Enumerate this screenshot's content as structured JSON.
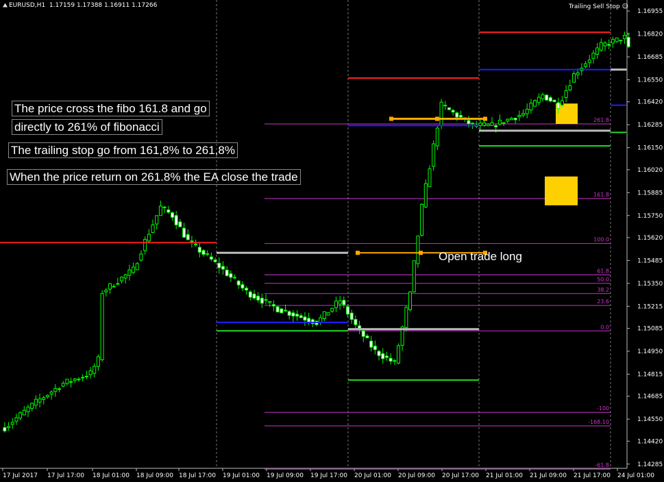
{
  "header": {
    "symbol": "EURUSD,H1",
    "ohlc": "1.17159 1.17388 1.16911 1.17266",
    "expert_name": "Trailing Sell Stop",
    "expert_icon": "smiley-icon"
  },
  "annotations": {
    "line1": "The price cross the fibo 161.8 and go",
    "line2": "directly to 261% of fibonacci",
    "line3": "The trailing stop go from 161,8% to 261,8%",
    "line4": "When the price return on 261.8% the EA close the trade",
    "open_trade": "Open trade long"
  },
  "colors": {
    "background": "#000000",
    "bull": "#00ff00",
    "bear": "#ffffff",
    "fib": "#cc33cc",
    "red": "#ff2020",
    "blue": "#2020ff",
    "green": "#20dd20",
    "gray": "#bdbdbd",
    "orange": "#ffaa00",
    "highlight": "#ffd000"
  },
  "chart_data": {
    "type": "candlestick",
    "symbol": "EURUSD",
    "timeframe": "H1",
    "y_range": [
      1.1426,
      1.17
    ],
    "y_ticks": [
      "1.16955",
      "1.16820",
      "1.16685",
      "1.16550",
      "1.16420",
      "1.16285",
      "1.16150",
      "1.16020",
      "1.15885",
      "1.15750",
      "1.15620",
      "1.15485",
      "1.15350",
      "1.15215",
      "1.15085",
      "1.14950",
      "1.14815",
      "1.14685",
      "1.14550",
      "1.14420",
      "1.14285"
    ],
    "x_labels": [
      "17 Jul 2017",
      "17 Jul 17:00",
      "18 Jul 01:00",
      "18 Jul 09:00",
      "18 Jul 17:00",
      "19 Jul 01:00",
      "19 Jul 09:00",
      "19 Jul 17:00",
      "20 Jul 01:00",
      "20 Jul 09:00",
      "20 Jul 17:00",
      "21 Jul 01:00",
      "21 Jul 09:00",
      "21 Jul 17:00",
      "24 Jul 01:00"
    ],
    "x_dividers": [
      "19 Jul 01:00",
      "20 Jul 01:00",
      "21 Jul 01:00",
      "24 Jul 01:00"
    ],
    "candle_anchors": [
      {
        "i": 0,
        "p": 1.145
      },
      {
        "i": 8,
        "p": 1.1465
      },
      {
        "i": 15,
        "p": 1.1476
      },
      {
        "i": 22,
        "p": 1.1482
      },
      {
        "i": 24,
        "p": 1.149
      },
      {
        "i": 25,
        "p": 1.153
      },
      {
        "i": 33,
        "p": 1.1543
      },
      {
        "i": 36,
        "p": 1.156
      },
      {
        "i": 40,
        "p": 1.158
      },
      {
        "i": 43,
        "p": 1.1575
      },
      {
        "i": 47,
        "p": 1.156
      },
      {
        "i": 55,
        "p": 1.1545
      },
      {
        "i": 62,
        "p": 1.153
      },
      {
        "i": 70,
        "p": 1.152
      },
      {
        "i": 80,
        "p": 1.1512
      },
      {
        "i": 86,
        "p": 1.1525
      },
      {
        "i": 90,
        "p": 1.151
      },
      {
        "i": 95,
        "p": 1.1495
      },
      {
        "i": 100,
        "p": 1.1488
      },
      {
        "i": 104,
        "p": 1.153
      },
      {
        "i": 107,
        "p": 1.158
      },
      {
        "i": 112,
        "p": 1.164
      },
      {
        "i": 120,
        "p": 1.1628
      },
      {
        "i": 125,
        "p": 1.1628
      },
      {
        "i": 133,
        "p": 1.1635
      },
      {
        "i": 138,
        "p": 1.1646
      },
      {
        "i": 142,
        "p": 1.164
      },
      {
        "i": 146,
        "p": 1.1658
      },
      {
        "i": 151,
        "p": 1.167
      },
      {
        "i": 153,
        "p": 1.1675
      },
      {
        "i": 159,
        "p": 1.168
      },
      {
        "i": 160,
        "p": 1.1673
      }
    ],
    "fibonacci": [
      {
        "label": "261.8",
        "price": 1.1629
      },
      {
        "label": "161.8",
        "price": 1.1585
      },
      {
        "label": "100.0",
        "price": 1.15585
      },
      {
        "label": "61.8",
        "price": 1.154
      },
      {
        "label": "50.0",
        "price": 1.1535
      },
      {
        "label": "38.2",
        "price": 1.1529
      },
      {
        "label": "23.6",
        "price": 1.1522
      },
      {
        "label": "0.0",
        "price": 1.1507
      },
      {
        "label": "-100",
        "price": 1.1459
      },
      {
        "label": "-168.10",
        "price": 1.1451
      },
      {
        "label": "-61.8",
        "price": 1.14255
      }
    ],
    "levels": [
      {
        "color": "red",
        "from": "19 Jul 01:00",
        "to": "19 Jul 17:00",
        "price": 1.1559
      },
      {
        "color": "gray",
        "from": "19 Jul 01:00",
        "to": "20 Jul 01:00",
        "price": 1.1553
      },
      {
        "color": "blue",
        "from": "19 Jul 01:00",
        "to": "20 Jul 01:00",
        "price": 1.1512
      },
      {
        "color": "green",
        "from": "19 Jul 01:00",
        "to": "20 Jul 01:00",
        "price": 1.1507
      },
      {
        "color": "red",
        "from": "20 Jul 01:00",
        "to": "21 Jul 01:00",
        "price": 1.1656
      },
      {
        "color": "blue",
        "from": "20 Jul 01:00",
        "to": "21 Jul 01:00",
        "price": 1.1628
      },
      {
        "color": "gray",
        "from": "20 Jul 01:00",
        "to": "21 Jul 01:00",
        "price": 1.1508
      },
      {
        "color": "green",
        "from": "20 Jul 01:00",
        "to": "21 Jul 01:00",
        "price": 1.1478
      },
      {
        "color": "red",
        "from": "21 Jul 01:00",
        "to": "24 Jul 01:00",
        "price": 1.1683
      },
      {
        "color": "blue",
        "from": "21 Jul 01:00",
        "to": "24 Jul 01:00",
        "price": 1.1661
      },
      {
        "color": "gray",
        "from": "21 Jul 01:00",
        "to": "24 Jul 01:00",
        "price": 1.1625
      },
      {
        "color": "green",
        "from": "21 Jul 01:00",
        "to": "24 Jul 01:00",
        "price": 1.1616
      },
      {
        "color": "gray",
        "from": "24 Jul 01:00",
        "to": "end",
        "price": 1.1661
      },
      {
        "color": "blue",
        "from": "24 Jul 01:00",
        "to": "end",
        "price": 1.164
      },
      {
        "color": "green",
        "from": "24 Jul 01:00",
        "to": "end",
        "price": 1.1624
      }
    ]
  }
}
